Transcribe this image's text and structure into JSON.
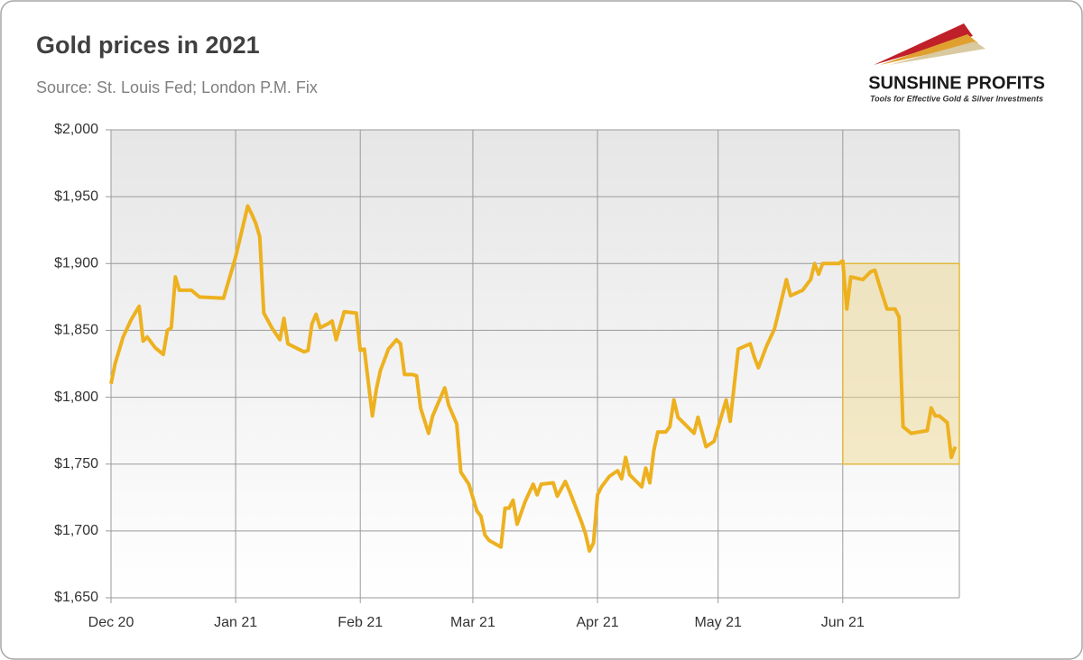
{
  "chart_data": {
    "type": "line",
    "title": "Gold prices in 2021",
    "subtitle": "Source: St. Louis Fed; London P.M. Fix",
    "x": [
      0,
      1,
      3,
      5,
      7,
      8,
      9,
      11,
      13,
      14,
      15,
      16,
      17,
      20,
      22,
      28,
      31,
      34,
      35,
      36,
      37,
      38,
      40,
      42,
      43,
      44,
      48,
      49,
      50,
      51,
      52,
      54,
      55,
      56,
      58,
      61,
      62,
      63,
      65,
      66,
      67,
      69,
      71,
      72,
      73,
      75,
      76,
      77,
      79,
      80,
      82,
      83,
      84,
      86,
      87,
      89,
      91,
      92,
      93,
      94,
      97,
      98,
      99,
      100,
      101,
      103,
      105,
      106,
      107,
      110,
      111,
      113,
      114,
      117,
      118,
      119,
      120,
      121,
      122,
      124,
      126,
      127,
      128,
      129,
      132,
      133,
      134,
      135,
      136,
      138,
      139,
      140,
      141,
      143,
      145,
      146,
      148,
      150,
      153,
      154,
      156,
      159,
      160,
      161,
      163,
      165,
      166,
      168,
      169,
      172,
      174,
      175,
      176,
      177,
      181,
      182,
      183,
      184,
      187,
      189,
      190,
      191,
      193,
      195,
      196,
      197,
      199,
      203,
      204,
      205,
      206,
      208,
      209,
      210
    ],
    "series": [
      {
        "color": "#edb120",
        "values": [
          1810,
          1825,
          1845,
          1858,
          1868,
          1842,
          1845,
          1837,
          1832,
          1850,
          1852,
          1890,
          1880,
          1880,
          1875,
          1874,
          1905,
          1943,
          1937,
          1930,
          1920,
          1863,
          1852,
          1843,
          1859,
          1840,
          1834,
          1835,
          1855,
          1862,
          1852,
          1855,
          1857,
          1843,
          1864,
          1863,
          1835,
          1836,
          1786,
          1806,
          1820,
          1836,
          1843,
          1840,
          1817,
          1817,
          1816,
          1792,
          1773,
          1786,
          1800,
          1807,
          1794,
          1780,
          1744,
          1735,
          1715,
          1711,
          1697,
          1693,
          1688,
          1717,
          1717,
          1723,
          1705,
          1722,
          1735,
          1727,
          1735,
          1736,
          1726,
          1737,
          1730,
          1707,
          1698,
          1685,
          1691,
          1727,
          1733,
          1741,
          1745,
          1739,
          1755,
          1742,
          1733,
          1747,
          1736,
          1760,
          1774,
          1774,
          1778,
          1798,
          1785,
          1779,
          1773,
          1785,
          1763,
          1767,
          1798,
          1782,
          1836,
          1840,
          1830,
          1822,
          1838,
          1851,
          1863,
          1888,
          1876,
          1880,
          1888,
          1900,
          1892,
          1900,
          1900,
          1902,
          1866,
          1890,
          1888,
          1894,
          1895,
          1885,
          1866,
          1866,
          1860,
          1778,
          1773,
          1775,
          1792,
          1786,
          1786,
          1781,
          1755,
          1763
        ]
      }
    ],
    "xlim": [
      0,
      211
    ],
    "xticks": [
      {
        "value": 0,
        "label": "Dec 20"
      },
      {
        "value": 31,
        "label": "Jan 21"
      },
      {
        "value": 62,
        "label": "Feb 21"
      },
      {
        "value": 90,
        "label": "Mar 21"
      },
      {
        "value": 121,
        "label": "Apr 21"
      },
      {
        "value": 151,
        "label": "May 21"
      },
      {
        "value": 182,
        "label": "Jun 21"
      }
    ],
    "ylim": [
      1650,
      2000
    ],
    "yticks": [
      {
        "value": 1650,
        "label": "$1,650"
      },
      {
        "value": 1700,
        "label": "$1,700"
      },
      {
        "value": 1750,
        "label": "$1,750"
      },
      {
        "value": 1800,
        "label": "$1,800"
      },
      {
        "value": 1850,
        "label": "$1,850"
      },
      {
        "value": 1900,
        "label": "$1,900"
      },
      {
        "value": 1950,
        "label": "$1,950"
      },
      {
        "value": 2000,
        "label": "$2,000"
      }
    ],
    "grid": true,
    "highlight": {
      "xlim": [
        182,
        211
      ],
      "ylim": [
        1750,
        1900
      ],
      "color": "#f0d68a"
    }
  },
  "logo": {
    "name": "SUNSHINE PROFITS",
    "tagline": "Tools for Effective Gold & Silver Investments"
  }
}
